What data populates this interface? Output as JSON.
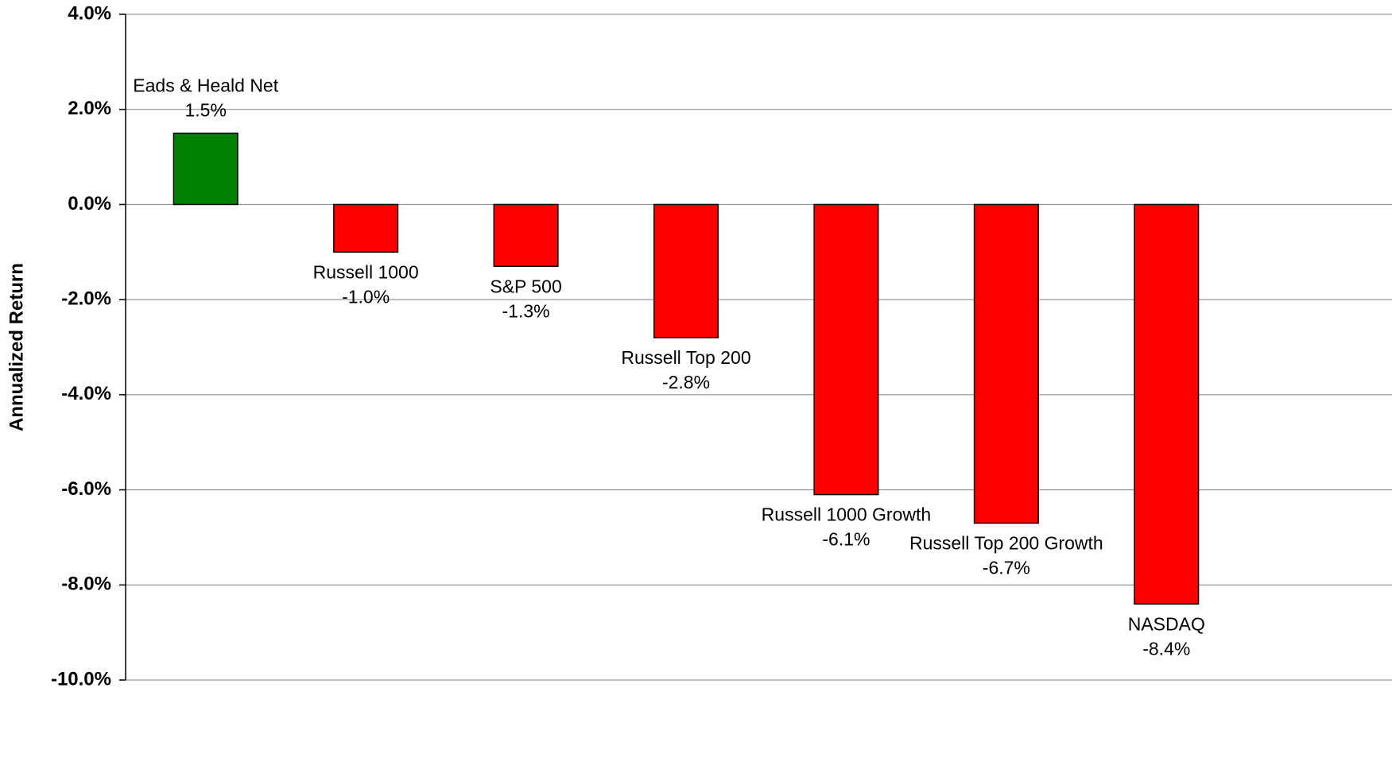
{
  "chart_data": {
    "type": "bar",
    "y_label": "Annualized Return",
    "categories": [
      "Eads & Heald Net",
      "Russell 1000",
      "S&P 500",
      "Russell Top 200",
      "Russell 1000 Growth",
      "Russell Top 200 Growth",
      "NASDAQ"
    ],
    "values": [
      1.5,
      -1.0,
      -1.3,
      -2.8,
      -6.1,
      -6.7,
      -8.4
    ],
    "value_labels": [
      "1.5%",
      "-1.0%",
      "-1.3%",
      "-2.8%",
      "-6.1%",
      "-6.7%",
      "-8.4%"
    ],
    "colors": [
      "#008000",
      "#ff0000",
      "#ff0000",
      "#ff0000",
      "#ff0000",
      "#ff0000",
      "#ff0000"
    ],
    "ylim": [
      -10,
      4
    ],
    "yticks": [
      {
        "value": 4,
        "label": "4.0%"
      },
      {
        "value": 2,
        "label": "2.0%"
      },
      {
        "value": 0,
        "label": "0.0%"
      },
      {
        "value": -2,
        "label": "-2.0%"
      },
      {
        "value": -4,
        "label": "-4.0%"
      },
      {
        "value": -6,
        "label": "-6.0%"
      },
      {
        "value": -8,
        "label": "-8.0%"
      },
      {
        "value": -10,
        "label": "-10.0%"
      }
    ],
    "grid": true
  }
}
